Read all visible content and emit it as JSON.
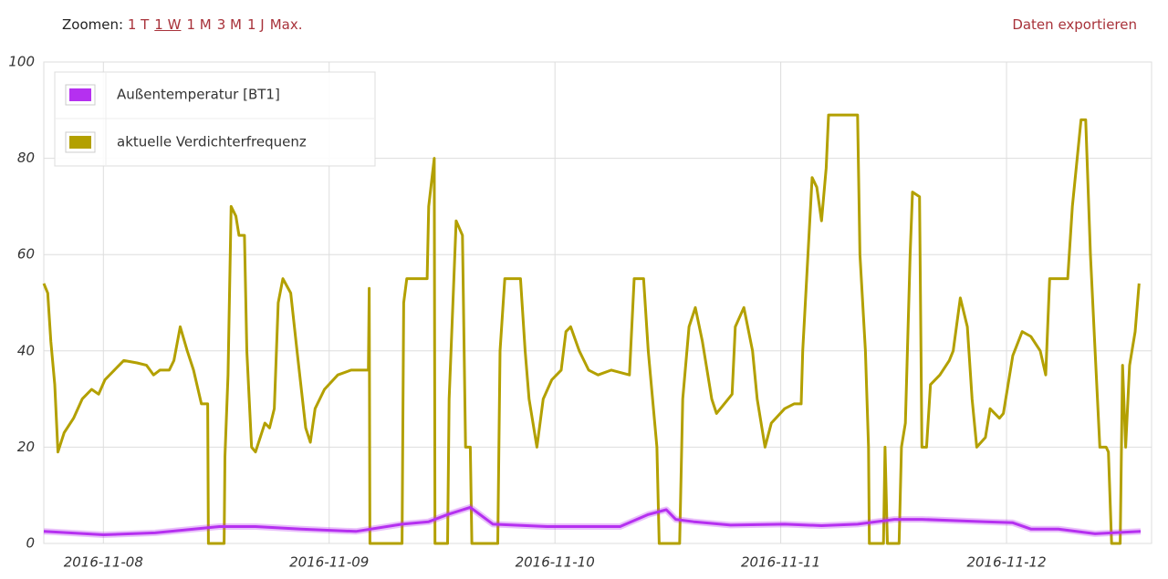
{
  "toolbar": {
    "zoom_label": "Zoomen:",
    "zoom_options": [
      "1 T",
      "1 W",
      "1 M",
      "3 M",
      "1 J",
      "Max."
    ],
    "active": "1 W",
    "export": "Daten exportieren"
  },
  "chart_data": {
    "type": "line",
    "xlim": [
      "2016-11-07T17:40",
      "2016-11-12T15:25"
    ],
    "xticks": [
      "2016-11-08",
      "2016-11-09",
      "2016-11-10",
      "2016-11-11",
      "2016-11-12"
    ],
    "ylim": [
      0,
      100
    ],
    "yticks": [
      0,
      20,
      40,
      60,
      80,
      100
    ],
    "grid": true,
    "legend": "top-left",
    "series": [
      {
        "name": "Außentemperatur [BT1]",
        "color": "#b530f0",
        "x": [
          "2016-11-07T17:40",
          "2016-11-08T00:00",
          "2016-11-08T05:30",
          "2016-11-08T12:20",
          "2016-11-08T16:10",
          "2016-11-08T21:00",
          "2016-11-09T02:50",
          "2016-11-09T07:45",
          "2016-11-09T10:35",
          "2016-11-09T12:35",
          "2016-11-09T15:00",
          "2016-11-09T17:25",
          "2016-11-09T23:10",
          "2016-11-10T06:55",
          "2016-11-10T09:55",
          "2016-11-10T11:50",
          "2016-11-10T12:50",
          "2016-11-10T14:45",
          "2016-11-10T18:40",
          "2016-11-11T00:25",
          "2016-11-11T04:20",
          "2016-11-11T08:10",
          "2016-11-11T12:05",
          "2016-11-11T15:00",
          "2016-11-11T21:45",
          "2016-11-12T00:40",
          "2016-11-12T02:35",
          "2016-11-12T05:30",
          "2016-11-12T09:25",
          "2016-11-12T14:15"
        ],
        "values": [
          2.5,
          1.8,
          2.2,
          3.5,
          3.5,
          3,
          2.5,
          4,
          4.5,
          6,
          7.5,
          4,
          3.5,
          3.5,
          6,
          7,
          5,
          4.5,
          3.8,
          4,
          3.7,
          4,
          5,
          5,
          4.5,
          4.3,
          3,
          3,
          2,
          2.5
        ]
      },
      {
        "name": "aktuelle Verdichterfrequenz",
        "color": "#b3a000",
        "x": [
          "2016-11-07T17:40",
          "2016-11-07T18:05",
          "2016-11-07T18:25",
          "2016-11-07T18:50",
          "2016-11-07T19:10",
          "2016-11-07T19:50",
          "2016-11-07T20:50",
          "2016-11-07T21:45",
          "2016-11-07T22:45",
          "2016-11-07T23:30",
          "2016-11-08T00:10",
          "2016-11-08T01:10",
          "2016-11-08T02:10",
          "2016-11-08T03:35",
          "2016-11-08T04:35",
          "2016-11-08T05:20",
          "2016-11-08T06:00",
          "2016-11-08T07:00",
          "2016-11-08T07:30",
          "2016-11-08T08:10",
          "2016-11-08T08:55",
          "2016-11-08T09:35",
          "2016-11-08T10:25",
          "2016-11-08T11:05",
          "2016-11-08T11:10",
          "2016-11-08T12:50",
          "2016-11-08T12:55",
          "2016-11-08T13:15",
          "2016-11-08T13:35",
          "2016-11-08T14:05",
          "2016-11-08T14:25",
          "2016-11-08T15:00",
          "2016-11-08T15:15",
          "2016-11-08T15:45",
          "2016-11-08T16:10",
          "2016-11-08T17:10",
          "2016-11-08T17:40",
          "2016-11-08T18:10",
          "2016-11-08T18:35",
          "2016-11-08T19:05",
          "2016-11-08T19:55",
          "2016-11-08T20:35",
          "2016-11-08T21:30",
          "2016-11-08T22:00",
          "2016-11-08T22:30",
          "2016-11-08T23:30",
          "2016-11-09T00:55",
          "2016-11-09T02:20",
          "2016-11-09T04:10",
          "2016-11-09T04:15",
          "2016-11-09T04:20",
          "2016-11-09T07:45",
          "2016-11-09T07:55",
          "2016-11-09T08:15",
          "2016-11-09T10:25",
          "2016-11-09T10:35",
          "2016-11-09T11:10",
          "2016-11-09T11:15",
          "2016-11-09T12:35",
          "2016-11-09T12:45",
          "2016-11-09T13:30",
          "2016-11-09T14:10",
          "2016-11-09T14:30",
          "2016-11-09T15:00",
          "2016-11-09T15:10",
          "2016-11-09T17:55",
          "2016-11-09T18:10",
          "2016-11-09T18:40",
          "2016-11-09T20:20",
          "2016-11-09T20:50",
          "2016-11-09T21:15",
          "2016-11-09T22:05",
          "2016-11-09T22:45",
          "2016-11-09T23:40",
          "2016-11-10T00:40",
          "2016-11-10T01:10",
          "2016-11-10T01:40",
          "2016-11-10T02:35",
          "2016-11-10T03:35",
          "2016-11-10T04:35",
          "2016-11-10T06:00",
          "2016-11-10T07:55",
          "2016-11-10T08:25",
          "2016-11-10T09:25",
          "2016-11-10T09:55",
          "2016-11-10T10:50",
          "2016-11-10T11:05",
          "2016-11-10T13:15",
          "2016-11-10T13:35",
          "2016-11-10T14:15",
          "2016-11-10T14:55",
          "2016-11-10T15:40",
          "2016-11-10T16:40",
          "2016-11-10T17:10",
          "2016-11-10T18:25",
          "2016-11-10T18:50",
          "2016-11-10T19:10",
          "2016-11-10T20:05",
          "2016-11-10T21:00",
          "2016-11-10T21:30",
          "2016-11-10T22:20",
          "2016-11-10T23:00",
          "2016-11-11T00:25",
          "2016-11-11T01:25",
          "2016-11-11T02:10",
          "2016-11-11T02:20",
          "2016-11-11T02:45",
          "2016-11-11T03:10",
          "2016-11-11T03:20",
          "2016-11-11T03:50",
          "2016-11-11T04:20",
          "2016-11-11T04:50",
          "2016-11-11T05:05",
          "2016-11-11T08:10",
          "2016-11-11T08:25",
          "2016-11-11T09:00",
          "2016-11-11T09:20",
          "2016-11-11T09:25",
          "2016-11-11T10:55",
          "2016-11-11T11:05",
          "2016-11-11T11:20",
          "2016-11-11T12:35",
          "2016-11-11T12:50",
          "2016-11-11T13:15",
          "2016-11-11T13:45",
          "2016-11-11T14:00",
          "2016-11-11T14:45",
          "2016-11-11T15:00",
          "2016-11-11T15:30",
          "2016-11-11T15:55",
          "2016-11-11T16:55",
          "2016-11-11T17:55",
          "2016-11-11T18:20",
          "2016-11-11T19:05",
          "2016-11-11T19:50",
          "2016-11-11T20:20",
          "2016-11-11T20:50",
          "2016-11-11T21:45",
          "2016-11-11T22:15",
          "2016-11-11T23:15",
          "2016-11-11T23:40",
          "2016-11-12T00:40",
          "2016-11-12T01:40",
          "2016-11-12T02:35",
          "2016-11-12T03:35",
          "2016-11-12T04:10",
          "2016-11-12T04:35",
          "2016-11-12T06:30",
          "2016-11-12T07:00",
          "2016-11-12T07:55",
          "2016-11-12T08:25",
          "2016-11-12T08:55",
          "2016-11-12T09:25",
          "2016-11-12T09:55",
          "2016-11-12T10:35",
          "2016-11-12T10:50",
          "2016-11-12T11:10",
          "2016-11-12T12:05",
          "2016-11-12T12:20",
          "2016-11-12T12:40",
          "2016-11-12T13:05",
          "2016-11-12T13:40",
          "2016-11-12T14:05"
        ],
        "values": [
          54,
          52,
          42,
          33,
          19,
          23,
          26,
          30,
          32,
          31,
          34,
          36,
          38,
          37.5,
          37,
          35,
          36,
          36,
          38,
          45,
          40,
          36,
          29,
          29,
          0,
          0,
          18,
          35,
          70,
          68,
          64,
          64,
          40,
          20,
          19,
          25,
          24,
          28,
          50,
          55,
          52,
          40,
          24,
          21,
          28,
          32,
          35,
          36,
          36,
          53,
          0,
          0,
          50,
          55,
          55,
          70,
          80,
          0,
          0,
          30,
          67,
          64,
          20,
          20,
          0,
          0,
          40,
          55,
          55,
          40,
          30,
          20,
          30,
          34,
          36,
          44,
          45,
          40,
          36,
          35,
          36,
          35,
          55,
          55,
          40,
          20,
          0,
          0,
          30,
          45,
          49,
          42,
          30,
          27,
          30,
          31,
          45,
          49,
          40,
          30,
          20,
          25,
          28,
          29,
          29,
          40,
          55,
          70,
          76,
          74,
          67,
          78,
          89,
          89,
          60,
          40,
          20,
          0,
          0,
          20,
          0,
          0,
          20,
          25,
          60,
          73,
          72,
          20,
          20,
          33,
          35,
          38,
          40,
          51,
          45,
          30,
          20,
          22,
          28,
          26,
          27,
          39,
          44,
          43,
          40,
          35,
          55,
          55,
          70,
          88,
          88,
          60,
          40,
          20,
          20,
          19,
          0,
          0,
          37,
          20,
          37,
          44,
          54
        ]
      }
    ]
  }
}
